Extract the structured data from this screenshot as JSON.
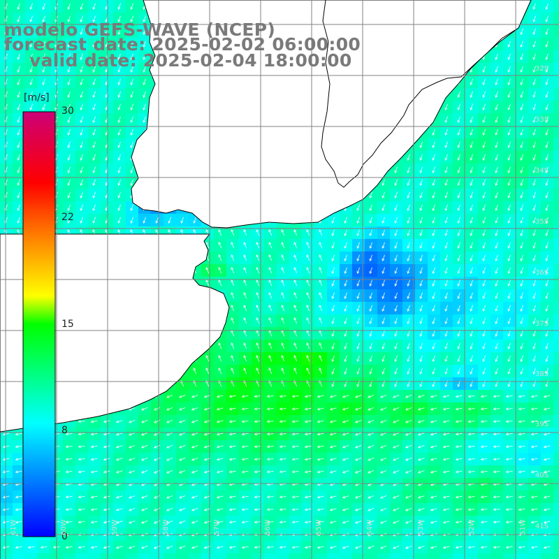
{
  "title": {
    "line1": "modelo GEFS-WAVE (NCEP)",
    "line2": "forecast date: 2025-02-02 06:00:00",
    "line3": "valid date: 2025-02-04 18:00:00"
  },
  "colorbar": {
    "unit": "[m/s]",
    "ticks": [
      {
        "label": "30",
        "value": 30
      },
      {
        "label": "22",
        "value": 22
      },
      {
        "label": "15",
        "value": 15
      },
      {
        "label": "8",
        "value": 8
      },
      {
        "label": "0",
        "value": 0
      }
    ],
    "stops": [
      {
        "value": 0,
        "color": "#0000ff"
      },
      {
        "value": 8,
        "color": "#00ffff"
      },
      {
        "value": 15,
        "color": "#00ff00"
      },
      {
        "value": 17,
        "color": "#ffff00"
      },
      {
        "value": 22,
        "color": "#ff6600"
      },
      {
        "value": 25,
        "color": "#ff0000"
      },
      {
        "value": 30,
        "color": "#cc0077"
      }
    ]
  },
  "lat_labels": [
    "32S",
    "33S",
    "34S",
    "35S",
    "36S",
    "37S",
    "38S",
    "39S",
    "40S",
    "41S"
  ],
  "lon_labels": [
    "61W",
    "60W",
    "59W",
    "58W",
    "57W",
    "56W",
    "55W",
    "54W",
    "53W",
    "52W",
    "51W"
  ],
  "colors": {
    "land": "#ffffff",
    "coast": "#000000",
    "grid": "#808080",
    "title": "#7a7a7a",
    "arrows": "#ffffff"
  }
}
